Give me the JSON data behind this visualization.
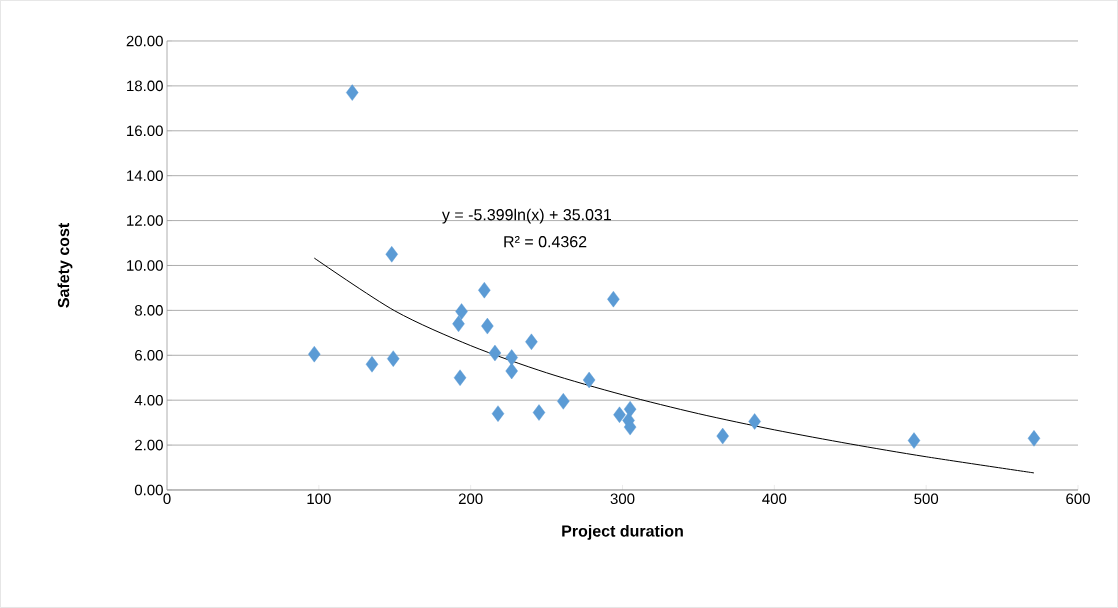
{
  "chart_data": {
    "type": "scatter",
    "xlabel": "Project duration",
    "ylabel": "Safety cost",
    "xlim": [
      0,
      600
    ],
    "ylim": [
      0,
      20
    ],
    "xticks": [
      0,
      100,
      200,
      300,
      400,
      500,
      600
    ],
    "yticks": [
      {
        "value": 0,
        "label": "0.00"
      },
      {
        "value": 2,
        "label": "2.00"
      },
      {
        "value": 4,
        "label": "4.00"
      },
      {
        "value": 6,
        "label": "6.00"
      },
      {
        "value": 8,
        "label": "8.00"
      },
      {
        "value": 10,
        "label": "10.00"
      },
      {
        "value": 12,
        "label": "12.00"
      },
      {
        "value": 14,
        "label": "14.00"
      },
      {
        "value": 16,
        "label": "16.00"
      },
      {
        "value": 18,
        "label": "18.00"
      },
      {
        "value": 20,
        "label": "20.00"
      }
    ],
    "grid": "y",
    "annotations": [
      "y = -5.399ln(x) + 35.031",
      "R² = 0.4362"
    ],
    "series": [
      {
        "marker": "diamond",
        "color": "#5b9bd5",
        "x": [
          97,
          122,
          135,
          148,
          149,
          192,
          194,
          193,
          209,
          211,
          216,
          218,
          227,
          227,
          240,
          245,
          261,
          278,
          294,
          298,
          304,
          305,
          305,
          366,
          387,
          492,
          571
        ],
        "values": [
          6.05,
          17.7,
          5.6,
          10.5,
          5.85,
          7.4,
          7.95,
          5.0,
          8.9,
          7.3,
          6.1,
          3.4,
          5.9,
          5.3,
          6.6,
          3.45,
          3.95,
          4.9,
          8.5,
          3.35,
          3.1,
          3.6,
          2.8,
          2.4,
          3.05,
          2.2,
          2.3
        ]
      },
      {
        "type": "line",
        "marker": "none",
        "line_style": "solid",
        "color": "#000000",
        "x": [
          97,
          150,
          200,
          250,
          300,
          350,
          400,
          450,
          500,
          571
        ],
        "values": [
          10.33,
          7.98,
          6.43,
          5.22,
          4.24,
          3.4,
          2.68,
          2.05,
          1.48,
          0.76
        ]
      }
    ]
  }
}
